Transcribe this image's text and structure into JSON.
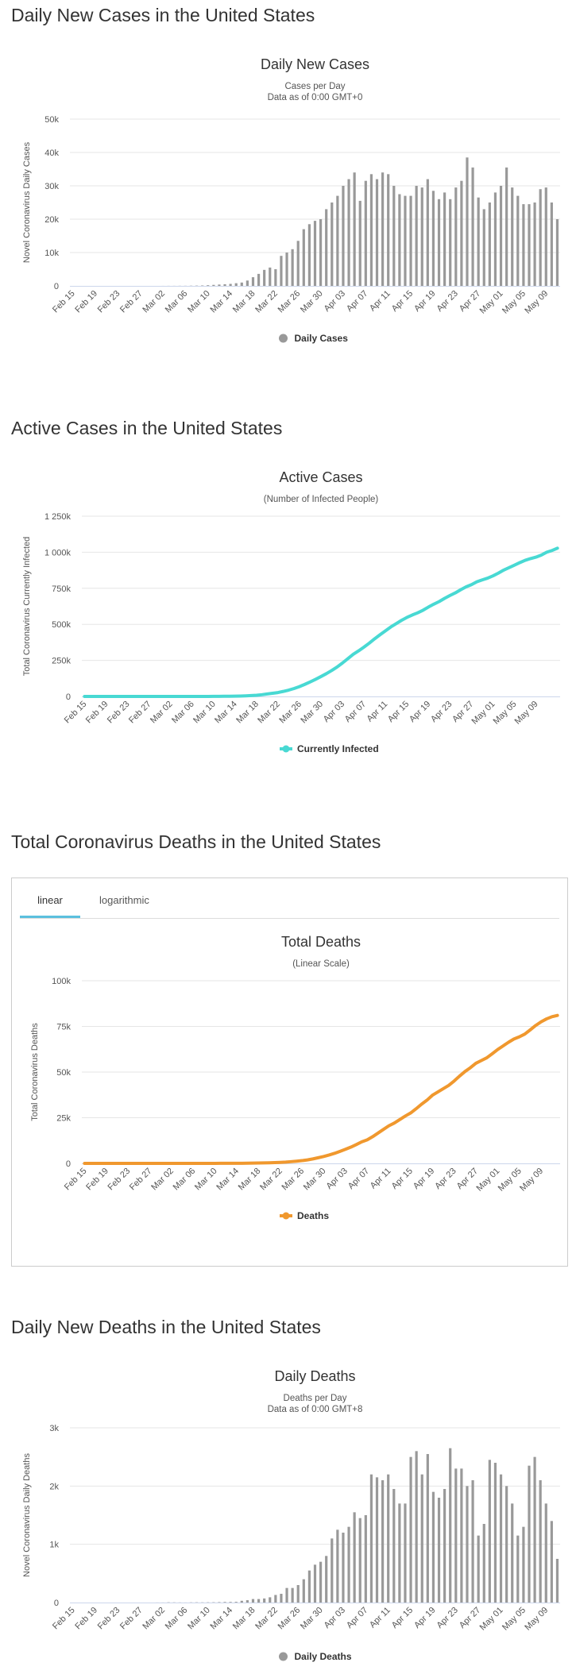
{
  "colors": {
    "bar": "#999999",
    "active_line": "#48d9d3",
    "deaths_line": "#f0982e",
    "grid": "#e6e6e6",
    "tab_accent": "#5bc0de"
  },
  "sections": {
    "daily_cases_title": "Daily New Cases in the United States",
    "active_cases_title": "Active Cases in the United States",
    "total_deaths_title": "Total Coronavirus Deaths in the United States",
    "daily_deaths_title": "Daily New Deaths in the United States"
  },
  "tabs": {
    "linear": "linear",
    "logarithmic": "logarithmic"
  },
  "chart_data": [
    {
      "id": "daily_cases",
      "type": "bar",
      "title": "Daily New Cases",
      "subtitle": [
        "Cases per Day",
        "Data as of 0:00 GMT+0"
      ],
      "ylabel": "Novel Coronavirus Daily Cases",
      "xlabel": "",
      "ylim": [
        0,
        50000
      ],
      "yticks": [
        0,
        10000,
        20000,
        30000,
        40000,
        50000
      ],
      "ytick_labels": [
        "0",
        "10k",
        "20k",
        "30k",
        "40k",
        "50k"
      ],
      "start_date": "Feb 15",
      "x_tick_labels": [
        "Feb 15",
        "Feb 19",
        "Feb 23",
        "Feb 27",
        "Mar 02",
        "Mar 06",
        "Mar 10",
        "Mar 14",
        "Mar 18",
        "Mar 22",
        "Mar 26",
        "Mar 30",
        "Apr 03",
        "Apr 07",
        "Apr 11",
        "Apr 15",
        "Apr 19",
        "Apr 23",
        "Apr 27",
        "May 01",
        "May 05",
        "May 09"
      ],
      "legend": "Daily Cases",
      "values": [
        0,
        0,
        0,
        0,
        0,
        0,
        0,
        0,
        0,
        0,
        0,
        0,
        0,
        0,
        0,
        0,
        10,
        20,
        20,
        30,
        30,
        60,
        80,
        120,
        200,
        300,
        400,
        500,
        600,
        800,
        1000,
        1600,
        2600,
        3600,
        4800,
        5500,
        5000,
        9000,
        10000,
        11000,
        13500,
        17000,
        18500,
        19500,
        20000,
        23000,
        25000,
        27000,
        30000,
        32000,
        34000,
        25500,
        31500,
        33500,
        32000,
        34000,
        33500,
        30000,
        27500,
        27000,
        27000,
        30000,
        29500,
        32000,
        28500,
        26000,
        28000,
        26000,
        29500,
        31500,
        38500,
        35500,
        26500,
        23000,
        25000,
        28000,
        30000,
        35500,
        29500,
        27000,
        24500,
        24500,
        25000,
        29000,
        29500,
        25000,
        20000
      ]
    },
    {
      "id": "active_cases",
      "type": "line",
      "title": "Active Cases",
      "subtitle": [
        "(Number of Infected People)"
      ],
      "ylabel": "Total Coronavirus Currently Infected",
      "xlabel": "",
      "ylim": [
        0,
        1250000
      ],
      "yticks": [
        0,
        250000,
        500000,
        750000,
        1000000,
        1250000
      ],
      "ytick_labels": [
        "0",
        "250k",
        "500k",
        "750k",
        "1 000k",
        "1 250k"
      ],
      "start_date": "Feb 15",
      "x_tick_labels": [
        "Feb 15",
        "Feb 19",
        "Feb 23",
        "Feb 27",
        "Mar 02",
        "Mar 06",
        "Mar 10",
        "Mar 14",
        "Mar 18",
        "Mar 22",
        "Mar 26",
        "Mar 30",
        "Apr 03",
        "Apr 07",
        "Apr 11",
        "Apr 15",
        "Apr 19",
        "Apr 23",
        "Apr 27",
        "May 01",
        "May 05",
        "May 09"
      ],
      "legend": "Currently Infected",
      "values": [
        0,
        0,
        0,
        0,
        0,
        0,
        0,
        0,
        0,
        0,
        0,
        0,
        0,
        0,
        0,
        0,
        0,
        0,
        0,
        0,
        0,
        100,
        200,
        300,
        500,
        800,
        1200,
        1700,
        2300,
        3100,
        4200,
        6000,
        8500,
        12000,
        17000,
        22000,
        27000,
        35000,
        44000,
        55000,
        68000,
        84000,
        101000,
        119000,
        138000,
        158000,
        180000,
        204000,
        232000,
        262000,
        292000,
        316000,
        342000,
        370000,
        400000,
        428000,
        455000,
        482000,
        505000,
        528000,
        548000,
        565000,
        580000,
        598000,
        620000,
        640000,
        658000,
        680000,
        700000,
        718000,
        740000,
        760000,
        775000,
        795000,
        808000,
        820000,
        836000,
        855000,
        876000,
        893000,
        910000,
        928000,
        944000,
        956000,
        966000,
        980000,
        1000000,
        1012000,
        1028000
      ]
    },
    {
      "id": "total_deaths",
      "type": "line",
      "title": "Total Deaths",
      "subtitle": [
        "(Linear Scale)"
      ],
      "ylabel": "Total Coronavirus Deaths",
      "xlabel": "",
      "ylim": [
        0,
        100000
      ],
      "yticks": [
        0,
        25000,
        50000,
        75000,
        100000
      ],
      "ytick_labels": [
        "0",
        "25k",
        "50k",
        "75k",
        "100k"
      ],
      "start_date": "Feb 15",
      "x_tick_labels": [
        "Feb 15",
        "Feb 19",
        "Feb 23",
        "Feb 27",
        "Mar 02",
        "Mar 06",
        "Mar 10",
        "Mar 14",
        "Mar 18",
        "Mar 22",
        "Mar 26",
        "Mar 30",
        "Apr 03",
        "Apr 07",
        "Apr 11",
        "Apr 15",
        "Apr 19",
        "Apr 23",
        "Apr 27",
        "May 01",
        "May 05",
        "May 09"
      ],
      "legend": "Deaths",
      "values": [
        0,
        0,
        0,
        0,
        0,
        0,
        0,
        0,
        0,
        0,
        0,
        0,
        0,
        0,
        0,
        1,
        2,
        6,
        9,
        11,
        12,
        15,
        19,
        22,
        26,
        31,
        38,
        48,
        58,
        70,
        100,
        140,
        200,
        260,
        330,
        420,
        550,
        700,
        950,
        1200,
        1500,
        1900,
        2450,
        3100,
        3800,
        4600,
        5500,
        6600,
        7700,
        8900,
        10300,
        11800,
        12900,
        14600,
        16600,
        18600,
        20600,
        22100,
        24000,
        25900,
        27600,
        29900,
        32400,
        34600,
        37300,
        39100,
        40900,
        42700,
        45100,
        47800,
        50300,
        52400,
        54800,
        56300,
        57800,
        60000,
        62300,
        64300,
        66300,
        68100,
        69300,
        70800,
        73100,
        75500,
        77500,
        79100,
        80300,
        81000
      ]
    },
    {
      "id": "daily_deaths",
      "type": "bar",
      "title": "Daily Deaths",
      "subtitle": [
        "Deaths per Day",
        "Data as of 0:00 GMT+8"
      ],
      "ylabel": "Novel Coronavirus Daily Deaths",
      "xlabel": "",
      "ylim": [
        0,
        3000
      ],
      "yticks": [
        0,
        1000,
        2000,
        3000
      ],
      "ytick_labels": [
        "0",
        "1k",
        "2k",
        "3k"
      ],
      "start_date": "Feb 15",
      "x_tick_labels": [
        "Feb 15",
        "Feb 19",
        "Feb 23",
        "Feb 27",
        "Mar 02",
        "Mar 06",
        "Mar 10",
        "Mar 14",
        "Mar 18",
        "Mar 22",
        "Mar 26",
        "Mar 30",
        "Apr 03",
        "Apr 07",
        "Apr 11",
        "Apr 15",
        "Apr 19",
        "Apr 23",
        "Apr 27",
        "May 01",
        "May 05",
        "May 09"
      ],
      "legend": "Daily Deaths",
      "values": [
        0,
        0,
        0,
        0,
        0,
        0,
        0,
        0,
        0,
        0,
        0,
        0,
        0,
        0,
        0,
        1,
        1,
        4,
        3,
        2,
        1,
        3,
        4,
        3,
        4,
        5,
        7,
        10,
        10,
        12,
        30,
        40,
        60,
        60,
        70,
        90,
        130,
        150,
        250,
        250,
        300,
        400,
        550,
        650,
        700,
        800,
        1100,
        1250,
        1200,
        1300,
        1550,
        1450,
        1500,
        2200,
        2150,
        2100,
        2200,
        1950,
        1700,
        1700,
        2500,
        2600,
        2200,
        2550,
        1900,
        1800,
        1950,
        2650,
        2300,
        2300,
        2000,
        2100,
        1150,
        1350,
        2450,
        2400,
        2200,
        2000,
        1700,
        1150,
        1300,
        2350,
        2500,
        2100,
        1700,
        1400,
        750
      ]
    }
  ]
}
